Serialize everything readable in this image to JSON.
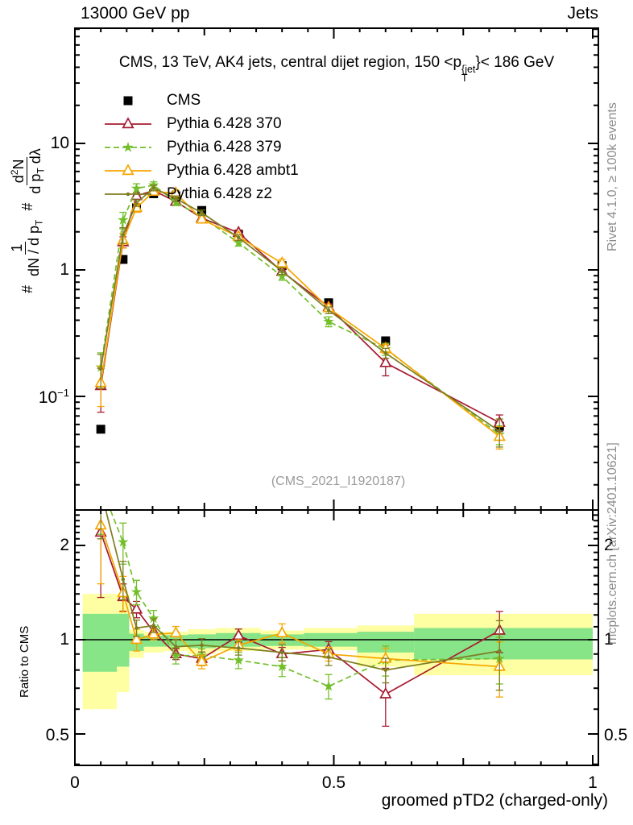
{
  "header": {
    "left": "13000 GeV pp",
    "right": "Jets"
  },
  "title": {
    "pre": "CMS, 13 TeV, AK4 jets, central dijet region, 150 <",
    "p": "p",
    "sup": "{jet",
    "sub": "T",
    "post": "}< 186 GeV"
  },
  "watermark": "(CMS_2021_I1920187)",
  "side_notes": {
    "rivet": "Rivet 4.1.0, ≥ 100k events",
    "mcplots": "mcplots.cern.ch [arXiv:2401.10621]"
  },
  "ylabel": {
    "hash1": "#",
    "hash2": "#",
    "f1num": "1",
    "f1den": "dN / d p",
    "f1den_sub": "T",
    "f2num_a": "d",
    "f2num_sup": "2",
    "f2num_b": "N",
    "f2den_a": "d p",
    "f2den_sub": "T",
    "f2den_b": " dλ"
  },
  "axes": {
    "x_label": "groomed pTD2 (charged-only)",
    "ratio_label": "Ratio to CMS",
    "x_tick_labels": [
      "0",
      "0.5",
      "1"
    ],
    "main_y_tick_labels": [
      "10",
      "1"
    ],
    "m1_base": "10",
    "m1_exp": "−1",
    "ratio_tick_labels": [
      "2",
      "1",
      "0.5"
    ]
  },
  "chart_data": {
    "type": "line",
    "title": "CMS, 13 TeV, AK4 jets, central dijet region, 150 < pT_jet < 186 GeV",
    "xlabel": "groomed pTD2 (charged-only)",
    "ylabel_main": "# 1/(dN/dpT) # d2N/(dpT dlambda)",
    "ylabel_ratio": "Ratio to CMS",
    "x_range": [
      0,
      1.012
    ],
    "main_y_range_log": [
      0.0126,
      82.6
    ],
    "ratio_y_range_log": [
      0.397,
      2.6
    ],
    "legend_position": "top-left",
    "band_colors": {
      "outer": "#feffa3",
      "inner": "#87e487"
    },
    "x": [
      0.05,
      0.093,
      0.119,
      0.152,
      0.195,
      0.245,
      0.316,
      0.4,
      0.49,
      0.6,
      0.82
    ],
    "cms": {
      "name": "CMS",
      "color": "#000000",
      "marker": "square",
      "values": [
        0.055,
        1.21,
        3.1,
        4.0,
        3.85,
        2.95,
        1.91,
        1.08,
        0.55,
        0.275,
        0.058
      ],
      "yerr_frac": [
        0.04,
        0.04,
        0.04,
        0.04,
        0.04,
        0.04,
        0.04,
        0.04,
        0.04,
        0.04,
        0.04
      ]
    },
    "series": [
      {
        "key": "p370",
        "name": "Pythia 6.428 370",
        "color": "#a51c30",
        "marker": "triangle",
        "dash": null,
        "values": [
          0.121,
          1.66,
          3.85,
          4.24,
          3.47,
          2.57,
          1.97,
          0.97,
          0.51,
          0.184,
          0.062
        ],
        "ratio": [
          2.2,
          1.37,
          1.25,
          1.06,
          0.9,
          0.87,
          1.03,
          0.9,
          0.93,
          0.67,
          1.07
        ],
        "err_frac": [
          0.38,
          0.1,
          0.06,
          0.04,
          0.04,
          0.05,
          0.05,
          0.05,
          0.06,
          0.21,
          0.15
        ]
      },
      {
        "key": "p379",
        "name": "Pythia 6.428 379",
        "color": "#72bf2a",
        "marker": "star",
        "dash": "7,4",
        "values": [
          0.17,
          2.48,
          4.4,
          4.68,
          3.43,
          2.63,
          1.64,
          0.89,
          0.39,
          0.237,
          0.05
        ],
        "ratio": [
          3.1,
          2.05,
          1.42,
          1.17,
          0.89,
          0.89,
          0.86,
          0.82,
          0.71,
          0.86,
          0.87
        ],
        "err_frac": [
          0.3,
          0.15,
          0.09,
          0.06,
          0.06,
          0.05,
          0.06,
          0.07,
          0.09,
          0.11,
          0.17
        ]
      },
      {
        "key": "ambt1",
        "name": "Pythia 6.428 ambt1",
        "color": "#f7a600",
        "marker": "triangle",
        "dash": null,
        "values": [
          0.128,
          1.71,
          3.1,
          4.16,
          4.04,
          2.51,
          1.83,
          1.13,
          0.5,
          0.239,
          0.048
        ],
        "ratio": [
          2.32,
          1.41,
          1.0,
          1.04,
          1.05,
          0.85,
          0.96,
          1.05,
          0.9,
          0.87,
          0.82
        ],
        "err_frac": [
          0.35,
          0.13,
          0.08,
          0.04,
          0.05,
          0.05,
          0.04,
          0.07,
          0.05,
          0.08,
          0.2
        ]
      },
      {
        "key": "z2",
        "name": "Pythia 6.428 z2",
        "color": "#7d7d21",
        "marker": "dot",
        "dash": null,
        "values": [
          0.165,
          1.89,
          3.38,
          4.44,
          3.66,
          2.83,
          1.8,
          0.98,
          0.48,
          0.22,
          0.053
        ],
        "ratio": [
          3.0,
          1.56,
          1.09,
          1.11,
          0.95,
          0.96,
          0.94,
          0.91,
          0.88,
          0.8,
          0.92
        ],
        "err_frac": [
          0.3,
          0.14,
          0.06,
          0.05,
          0.05,
          0.05,
          0.05,
          0.06,
          0.06,
          0.09,
          0.25
        ]
      }
    ],
    "bands": [
      {
        "x0": 0.015,
        "x1": 0.081,
        "ylo": 0.6,
        "yhi": 1.4,
        "glo": 0.79,
        "ghi": 1.21
      },
      {
        "x0": 0.081,
        "x1": 0.105,
        "ylo": 0.68,
        "yhi": 1.4,
        "glo": 0.82,
        "ghi": 1.21
      },
      {
        "x0": 0.105,
        "x1": 0.133,
        "ylo": 0.875,
        "yhi": 1.075,
        "glo": 0.92,
        "ghi": 1.045
      },
      {
        "x0": 0.133,
        "x1": 0.172,
        "ylo": 0.91,
        "yhi": 1.06,
        "glo": 0.95,
        "ghi": 1.03
      },
      {
        "x0": 0.172,
        "x1": 0.218,
        "ylo": 0.92,
        "yhi": 1.06,
        "glo": 0.95,
        "ghi": 1.035
      },
      {
        "x0": 0.218,
        "x1": 0.272,
        "ylo": 0.9,
        "yhi": 1.08,
        "glo": 0.94,
        "ghi": 1.04
      },
      {
        "x0": 0.272,
        "x1": 0.359,
        "ylo": 0.92,
        "yhi": 1.09,
        "glo": 0.95,
        "ghi": 1.05
      },
      {
        "x0": 0.359,
        "x1": 0.442,
        "ylo": 0.93,
        "yhi": 1.07,
        "glo": 0.955,
        "ghi": 1.04
      },
      {
        "x0": 0.442,
        "x1": 0.545,
        "ylo": 0.925,
        "yhi": 1.09,
        "glo": 0.95,
        "ghi": 1.05
      },
      {
        "x0": 0.545,
        "x1": 0.655,
        "ylo": 0.82,
        "yhi": 1.11,
        "glo": 0.91,
        "ghi": 1.06
      },
      {
        "x0": 0.655,
        "x1": 1.0,
        "ylo": 0.77,
        "yhi": 1.21,
        "glo": 0.865,
        "ghi": 1.09
      }
    ]
  }
}
